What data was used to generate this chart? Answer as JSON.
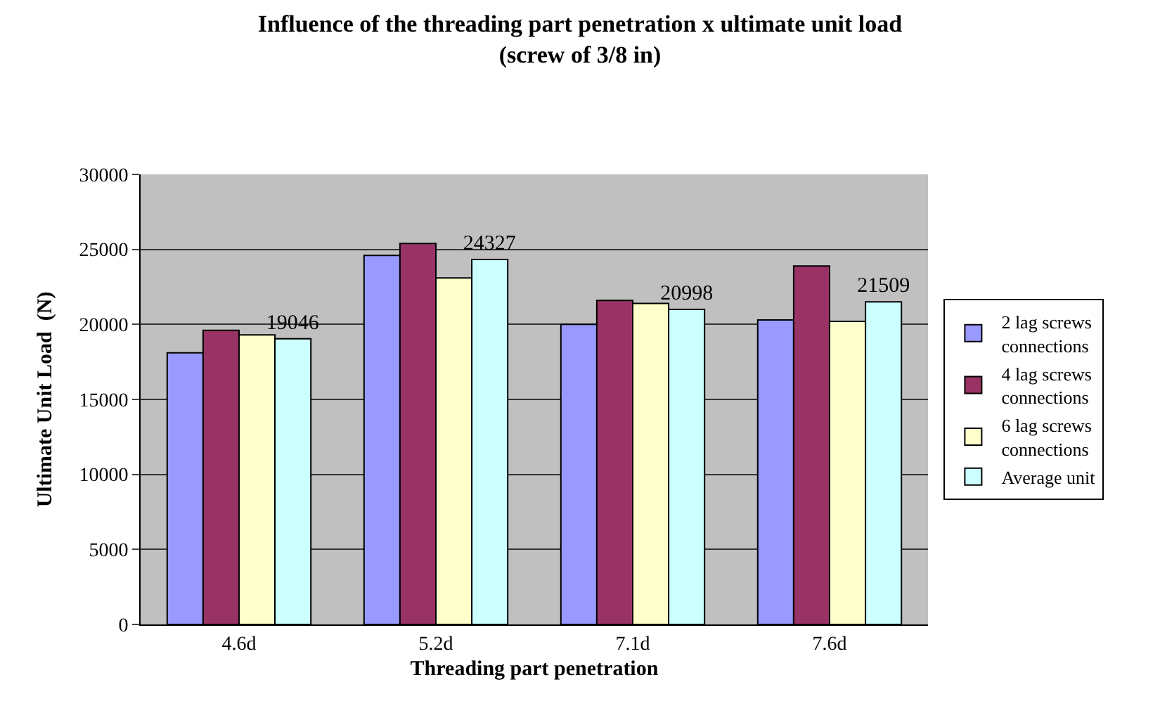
{
  "chart_data": {
    "type": "bar",
    "title": "Influence of the threading part penetration x ultimate unit load",
    "subtitle": "(screw of 3/8 in)",
    "xlabel": "Threading part penetration",
    "ylabel": "Ultimate Unit Load  (N)",
    "categories": [
      "4.6d",
      "5.2d",
      "7.1d",
      "7.6d"
    ],
    "series": [
      {
        "name": "2 lag screws connections",
        "color": "#9999ff",
        "values": [
          18100,
          24600,
          20000,
          20300
        ]
      },
      {
        "name": "4 lag screws connections",
        "color": "#993366",
        "values": [
          19600,
          25400,
          21600,
          23900
        ]
      },
      {
        "name": "6 lag screws connections",
        "color": "#ffffcc",
        "values": [
          19300,
          23100,
          21400,
          20200
        ]
      },
      {
        "name": "Average unit",
        "color": "#ccffff",
        "values": [
          19046,
          24327,
          20998,
          21509
        ],
        "value_labels": [
          "19046",
          "24327",
          "20998",
          "21509"
        ]
      }
    ],
    "ylim": [
      0,
      30000
    ],
    "yticks": [
      0,
      5000,
      10000,
      15000,
      20000,
      25000,
      30000
    ],
    "grid": "y",
    "legend": "right"
  }
}
